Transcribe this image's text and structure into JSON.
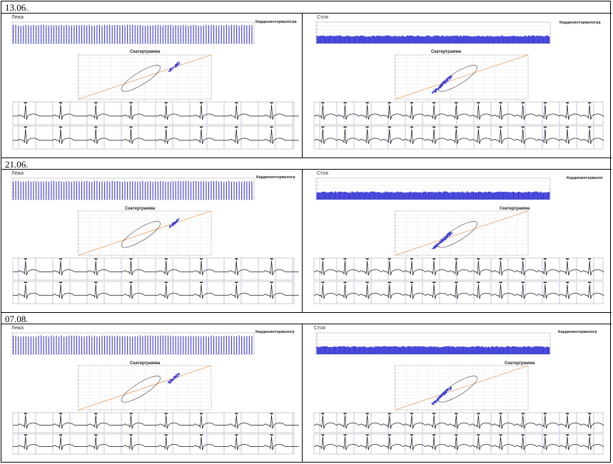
{
  "sections": [
    {
      "date": "13.06.",
      "left_label": "Лежа",
      "right_label": "Стоя",
      "left_title": "Кардиоинтервалогра",
      "right_title": "Кардиоинтервалогра",
      "scatter_title": "Скатерграмма"
    },
    {
      "date": "21.06.",
      "left_label": "Лежа",
      "right_label": "Стоя",
      "left_title": "Кардиоинтервалогр",
      "right_title": "Кардиоинтервалог",
      "scatter_title": "Скатерграмма"
    },
    {
      "date": "07.08.",
      "left_label": "Лежа",
      "right_label": "Стоя",
      "left_title": "Кардиоинтервалогр",
      "right_title": "Кардиоинтервалогр",
      "scatter_title": "Скатерграмма"
    }
  ],
  "colors": {
    "bars": "#3b3bd6",
    "line": "#e8a060",
    "ellipse": "#555555",
    "grid": "#9aa0d8",
    "ecg": "#111111"
  }
}
